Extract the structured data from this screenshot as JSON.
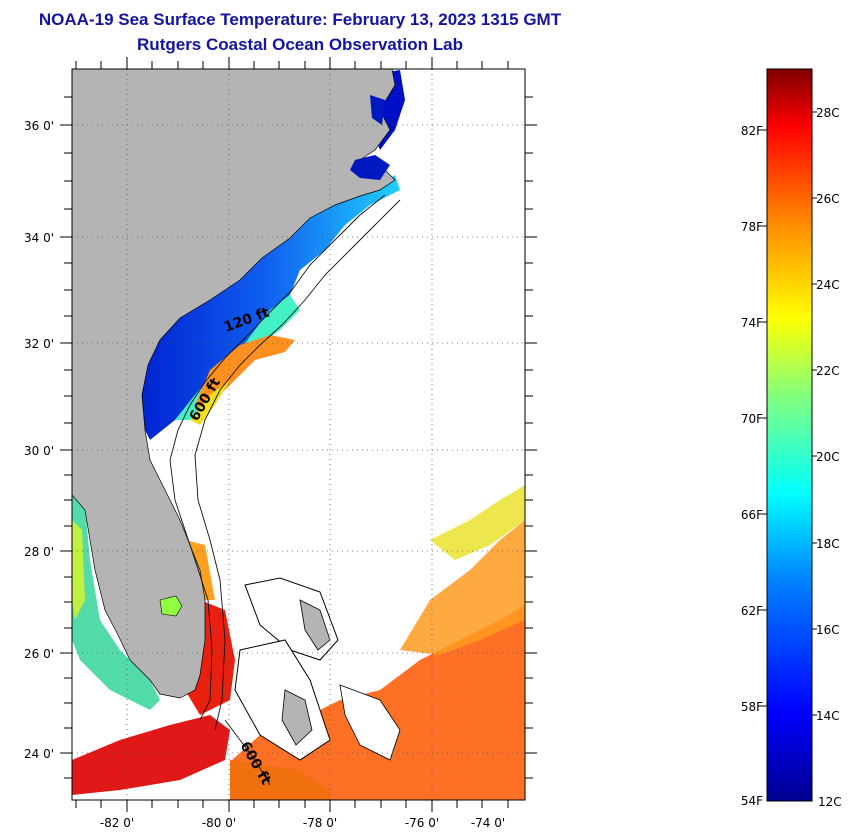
{
  "header": {
    "title": "NOAA-19 Sea Surface Temperature:  February 13, 2023 1315 GMT",
    "subtitle": "Rutgers Coastal Ocean Observation Lab"
  },
  "map": {
    "lat_labels": [
      "36 0'",
      "34 0'",
      "32 0'",
      "30 0'",
      "28 0'",
      "26 0'",
      "24 0'"
    ],
    "lon_labels": [
      "-82 0'",
      "-80 0'",
      "-78 0'",
      "-76 0'",
      "-74 0'"
    ],
    "contour_labels": [
      "120 ft",
      "600 ft",
      "600 ft"
    ],
    "colors": {
      "land": "#b4b4b4",
      "water_nodata": "#ffffff",
      "title": "#1414a0"
    }
  },
  "colorbar": {
    "fahrenheit_labels": [
      "82F",
      "78F",
      "74F",
      "70F",
      "66F",
      "62F",
      "58F",
      "54F"
    ],
    "celsius_labels": [
      "28C",
      "26C",
      "24C",
      "22C",
      "20C",
      "18C",
      "16C",
      "14C",
      "12C"
    ],
    "colormap": "jet",
    "range_c": [
      12,
      29
    ]
  }
}
